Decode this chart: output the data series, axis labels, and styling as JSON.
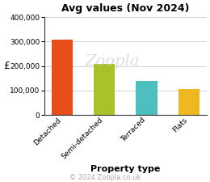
{
  "title": "Avg values (Nov 2024)",
  "categories": [
    "Detached",
    "Semi-detached",
    "Terraced",
    "Flats"
  ],
  "values": [
    308000,
    208000,
    140000,
    108000
  ],
  "bar_colors": [
    "#e84e1b",
    "#a8c228",
    "#4dbfbf",
    "#f0b820"
  ],
  "ylabel": "£",
  "xlabel": "Property type",
  "ylim": [
    0,
    400000
  ],
  "yticks": [
    0,
    100000,
    200000,
    300000,
    400000
  ],
  "ytick_labels": [
    "0",
    "100,000",
    "200,000",
    "300,000",
    "400,000"
  ],
  "copyright": "© 2024 Zoopla.co.uk",
  "bg_color": "#ffffff",
  "watermark": "Zoopla",
  "title_fontsize": 9,
  "xlabel_fontsize": 8,
  "ylabel_fontsize": 9,
  "tick_fontsize": 6.5,
  "copyright_fontsize": 6,
  "bar_width": 0.5
}
